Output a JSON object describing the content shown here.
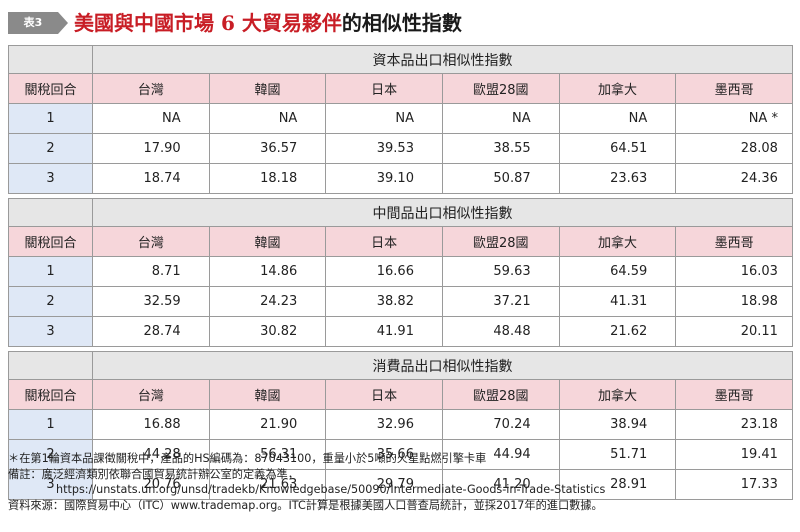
{
  "header": {
    "badge": "表3",
    "title_red": "美國與中國市場 6 大貿易夥伴",
    "title_black": "的相似性指數"
  },
  "columns": [
    "關稅回合",
    "台灣",
    "韓國",
    "日本",
    "歐盟28國",
    "加拿大",
    "墨西哥"
  ],
  "sections": [
    {
      "title": "資本品出口相似性指數",
      "rows": [
        [
          "1",
          "NA",
          "NA",
          "NA",
          "NA",
          "NA",
          "NA *"
        ],
        [
          "2",
          "17.90",
          "36.57",
          "39.53",
          "38.55",
          "64.51",
          "28.08"
        ],
        [
          "3",
          "18.74",
          "18.18",
          "39.10",
          "50.87",
          "23.63",
          "24.36"
        ]
      ]
    },
    {
      "title": "中間品出口相似性指數",
      "rows": [
        [
          "1",
          "8.71",
          "14.86",
          "16.66",
          "59.63",
          "64.59",
          "16.03"
        ],
        [
          "2",
          "32.59",
          "24.23",
          "38.82",
          "37.21",
          "41.31",
          "18.98"
        ],
        [
          "3",
          "28.74",
          "30.82",
          "41.91",
          "48.48",
          "21.62",
          "20.11"
        ]
      ]
    },
    {
      "title": "消費品出口相似性指數",
      "rows": [
        [
          "1",
          "16.88",
          "21.90",
          "32.96",
          "70.24",
          "38.94",
          "23.18"
        ],
        [
          "2",
          "44.28",
          "56.31",
          "35.66",
          "44.94",
          "51.71",
          "19.41"
        ],
        [
          "3",
          "20.76",
          "21.63",
          "29.79",
          "41.20",
          "28.91",
          "17.33"
        ]
      ]
    }
  ],
  "notes": {
    "footnote": "＊在第1輪資本品課徵關稅中，產品的HS編碼為：87043100，重量小於5噸的火星點燃引擎卡車",
    "remark": "備註：廣泛經濟類別依聯合國貿易統計辦公室的定義為準，",
    "url": "https://unstats.un.org/unsd/tradekb/Knowledgebase/50090/Intermediate-Goods-in-Trade-Statistics",
    "source": "資料來源：國際貿易中心（ITC）www.trademap.org。ITC計算是根據美國人口普查局統計，並採2017年的進口數據。"
  }
}
